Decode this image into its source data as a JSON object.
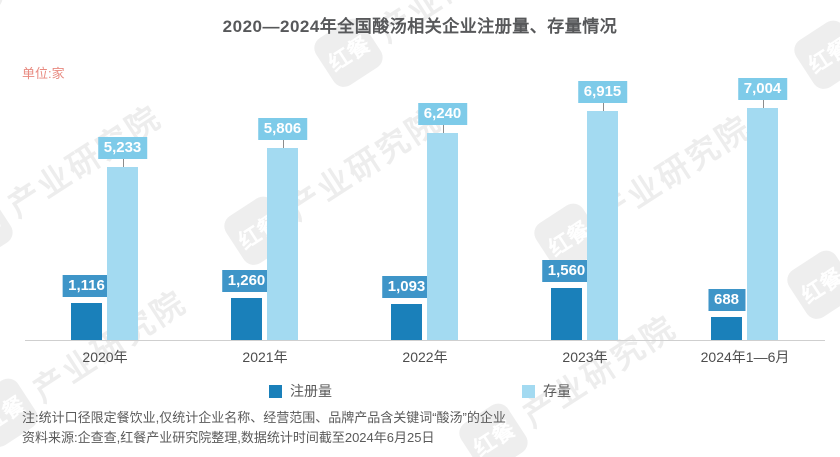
{
  "title": "2020—2024年全国酸汤相关企业注册量、存量情况",
  "unit_label": "单位:家",
  "watermark": {
    "logo_text": "红餐",
    "brand_text": "产业研究院"
  },
  "chart_data": {
    "type": "bar",
    "title": "2020—2024年全国酸汤相关企业注册量、存量情况",
    "categories": [
      "2020年",
      "2021年",
      "2022年",
      "2023年",
      "2024年1—6月"
    ],
    "series": [
      {
        "name": "注册量",
        "color": "#1a80ba",
        "label_bg": "#3e95c8",
        "values": [
          1116,
          1260,
          1093,
          1560,
          688
        ]
      },
      {
        "name": "存量",
        "color": "#a3daf1",
        "label_bg": "#7ecbe9",
        "values": [
          5233,
          5806,
          6240,
          6915,
          7004
        ]
      }
    ],
    "unit": "家",
    "ylim": [
      0,
      7004
    ],
    "grid": false,
    "legend_position": "bottom",
    "value_labels_shown": true
  },
  "legend": [
    {
      "label": "注册量",
      "color": "#1a80ba"
    },
    {
      "label": "存量",
      "color": "#a3daf1"
    }
  ],
  "notes": [
    "注:统计口径限定餐饮业,仅统计企业名称、经营范围、品牌产品含关键词“酸汤”的企业",
    "资料来源:企查查,红餐产业研究院整理,数据统计时间截至2024年6月25日"
  ],
  "colors": {
    "registration_bar": "#1a80ba",
    "registration_label_bg": "#3e95c8",
    "stock_bar": "#a3daf1",
    "stock_label_bg": "#7ecbe9",
    "axis_line": "#cfcfcf",
    "title_text": "#57585a",
    "note_text": "#5a5a5a",
    "unit_text": "#e8897f",
    "watermark": "#ededed"
  }
}
